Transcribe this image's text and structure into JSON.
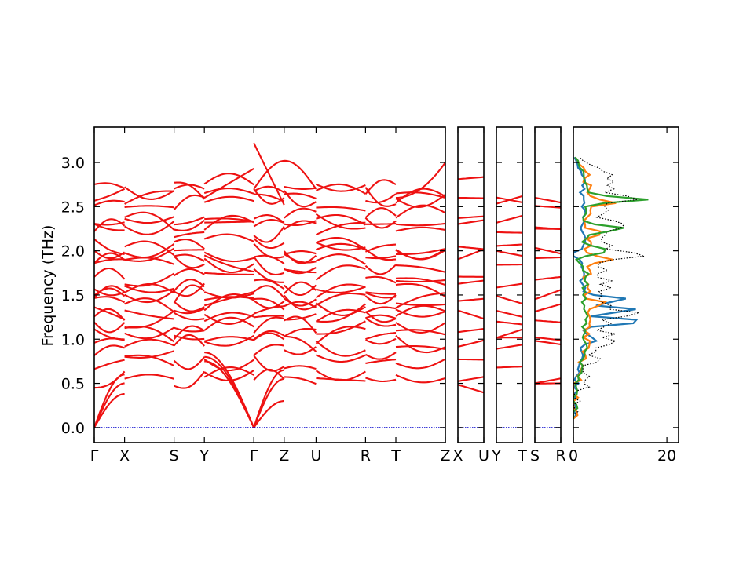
{
  "chart_data": {
    "type": "line",
    "ylabel": "Frequency (THz)",
    "ylim": [
      -0.17,
      3.4
    ],
    "y_ticks": [
      "0.0",
      "0.5",
      "1.0",
      "1.5",
      "2.0",
      "2.5",
      "3.0"
    ],
    "y_tick_values": [
      0.0,
      0.5,
      1.0,
      1.5,
      2.0,
      2.5,
      3.0
    ],
    "panels": [
      {
        "name": "main",
        "x_ticks": [
          "Γ",
          "X",
          "S",
          "Y",
          "Γ",
          "Z",
          "U",
          "R",
          "T",
          "Z"
        ],
        "x_tick_values": [
          0.0,
          0.19,
          0.5,
          0.69,
          1.0,
          1.19,
          1.39,
          1.7,
          1.89,
          2.2
        ]
      },
      {
        "name": "segment-X-U",
        "x_ticks": [
          "X",
          "U"
        ],
        "x_tick_values": [
          0,
          1
        ]
      },
      {
        "name": "segment-Y-T",
        "x_ticks": [
          "Y",
          "T"
        ],
        "x_tick_values": [
          0,
          1
        ]
      },
      {
        "name": "segment-S-R",
        "x_ticks": [
          "S",
          "R"
        ],
        "x_tick_values": [
          0,
          1
        ]
      },
      {
        "name": "dos",
        "x_ticks": [
          "0",
          "20"
        ],
        "x_tick_values": [
          0,
          20
        ],
        "xlim": [
          0,
          22.5
        ]
      }
    ],
    "band_color": "#ee1111",
    "zero_line_color": "#0000cc",
    "dos_series": [
      {
        "color": "#1f77b4",
        "style": "solid"
      },
      {
        "color": "#ff7f0e",
        "style": "solid"
      },
      {
        "color": "#2ca02c",
        "style": "solid"
      },
      {
        "color": "#000000",
        "style": "dotted"
      }
    ]
  }
}
